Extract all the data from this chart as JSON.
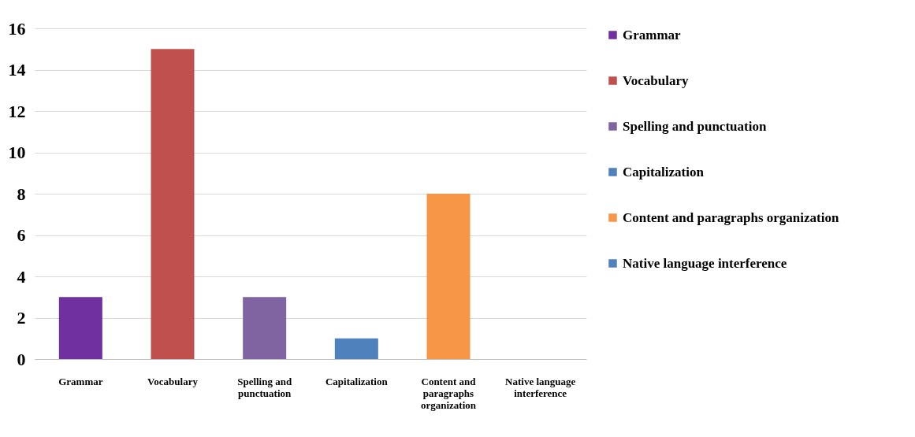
{
  "chart_data": {
    "type": "bar",
    "categories": [
      "Grammar",
      "Vocabulary",
      "Spelling and punctuation",
      "Capitalization",
      "Content and paragraphs organization",
      "Native language interference"
    ],
    "series": [
      {
        "name": "Grammar",
        "color": "#7030a0",
        "values": [
          3,
          null,
          null,
          null,
          null,
          null
        ]
      },
      {
        "name": "Vocabulary",
        "color": "#c0504d",
        "values": [
          null,
          15,
          null,
          null,
          null,
          null
        ]
      },
      {
        "name": "Spelling and punctuation",
        "color": "#8064a2",
        "values": [
          null,
          null,
          3,
          null,
          null,
          null
        ]
      },
      {
        "name": "Capitalization",
        "color": "#4f81bd",
        "values": [
          null,
          null,
          null,
          1,
          null,
          null
        ]
      },
      {
        "name": "Content and paragraphs organization",
        "color": "#f79646",
        "values": [
          null,
          null,
          null,
          null,
          8,
          null
        ]
      },
      {
        "name": "Native language interference",
        "color": "#4f81bd",
        "values": [
          null,
          null,
          null,
          null,
          null,
          0
        ]
      }
    ],
    "ylim": [
      0,
      16
    ],
    "yticks": [
      0,
      2,
      4,
      6,
      8,
      10,
      12,
      14,
      16
    ],
    "grid": "y",
    "legend": "right"
  }
}
